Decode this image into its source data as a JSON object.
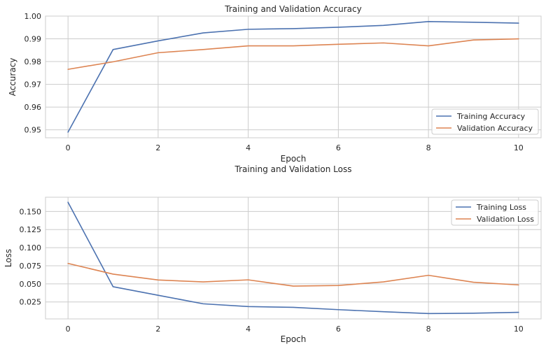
{
  "chart_data": [
    {
      "type": "line",
      "title": "Training and Validation Accuracy",
      "xlabel": "Epoch",
      "ylabel": "Accuracy",
      "x": [
        0,
        1,
        2,
        3,
        4,
        5,
        6,
        7,
        8,
        9,
        10
      ],
      "xlim": [
        -0.5,
        10.5
      ],
      "ylim": [
        0.9465,
        1.0
      ],
      "xticks": [
        0,
        2,
        4,
        6,
        8,
        10
      ],
      "xtick_labels": [
        "0",
        "2",
        "4",
        "6",
        "8",
        "10"
      ],
      "yticks": [
        0.95,
        0.96,
        0.97,
        0.98,
        0.99,
        1.0
      ],
      "ytick_labels": [
        "0.95",
        "0.96",
        "0.97",
        "0.98",
        "0.99",
        "1.00"
      ],
      "grid": true,
      "legend_position": "lower-right",
      "series": [
        {
          "name": "Training Accuracy",
          "color": "#4c72b0",
          "values": [
            0.949,
            0.9853,
            0.9891,
            0.9926,
            0.9942,
            0.9945,
            0.9951,
            0.9959,
            0.9976,
            0.9973,
            0.9969
          ]
        },
        {
          "name": "Validation Accuracy",
          "color": "#dd8452",
          "values": [
            0.9766,
            0.9799,
            0.9839,
            0.9853,
            0.9869,
            0.9869,
            0.9876,
            0.9882,
            0.9869,
            0.9895,
            0.99
          ]
        }
      ]
    },
    {
      "type": "line",
      "title": "Training and Validation Loss",
      "xlabel": "Epoch",
      "ylabel": "Loss",
      "x": [
        0,
        1,
        2,
        3,
        4,
        5,
        6,
        7,
        8,
        9,
        10
      ],
      "xlim": [
        -0.5,
        10.5
      ],
      "ylim": [
        0.0015,
        0.1697
      ],
      "xticks": [
        0,
        2,
        4,
        6,
        8,
        10
      ],
      "xtick_labels": [
        "0",
        "2",
        "4",
        "6",
        "8",
        "10"
      ],
      "yticks": [
        0.025,
        0.05,
        0.075,
        0.1,
        0.125,
        0.15
      ],
      "ytick_labels": [
        "0.025",
        "0.050",
        "0.075",
        "0.100",
        "0.125",
        "0.150"
      ],
      "grid": true,
      "legend_position": "upper-right",
      "series": [
        {
          "name": "Training Loss",
          "color": "#4c72b0",
          "values": [
            0.1627,
            0.046,
            0.0342,
            0.0224,
            0.0186,
            0.0175,
            0.0143,
            0.0115,
            0.0089,
            0.0094,
            0.0106
          ]
        },
        {
          "name": "Validation Loss",
          "color": "#dd8452",
          "values": [
            0.0782,
            0.0634,
            0.0553,
            0.0527,
            0.0555,
            0.0469,
            0.0477,
            0.0527,
            0.0618,
            0.0522,
            0.0485
          ]
        }
      ]
    }
  ]
}
